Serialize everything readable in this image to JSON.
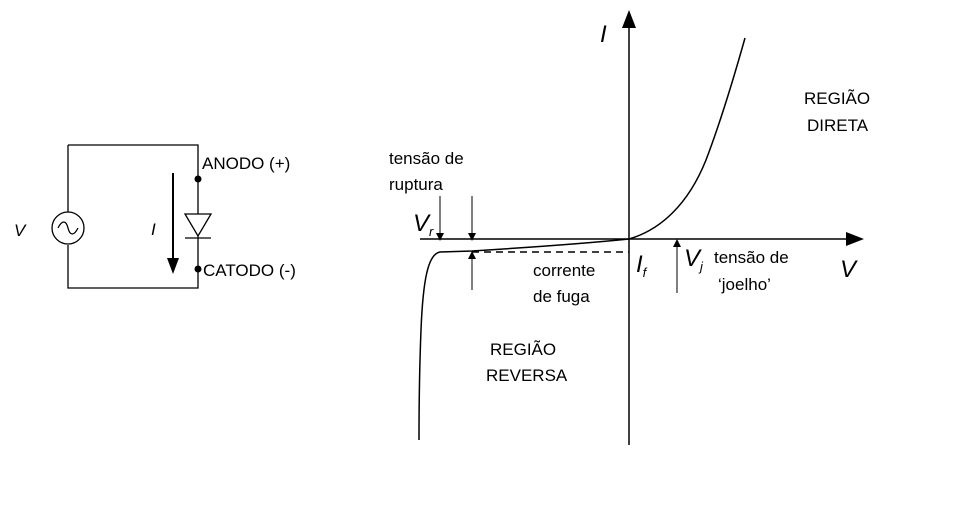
{
  "circuit": {
    "source_label": "V",
    "current_label": "I",
    "anode_label": "ANODO (+)",
    "cathode_label": "CATODO (-)"
  },
  "graph": {
    "y_axis_label": "I",
    "x_axis_label": "V",
    "forward_region": [
      "REGIÃO",
      "DIRETA"
    ],
    "reverse_region": [
      "REGIÃO",
      "REVERSA"
    ],
    "breakdown_voltage": [
      "tensão de",
      "ruptura"
    ],
    "vr_label": "V",
    "vr_subscript": "r",
    "leakage_current": [
      "corrente",
      "de fuga"
    ],
    "if_label": "I",
    "if_subscript": "f",
    "vj_label": "V",
    "vj_subscript": "j",
    "knee_voltage": [
      "tensão de",
      "‘joelho’"
    ]
  }
}
